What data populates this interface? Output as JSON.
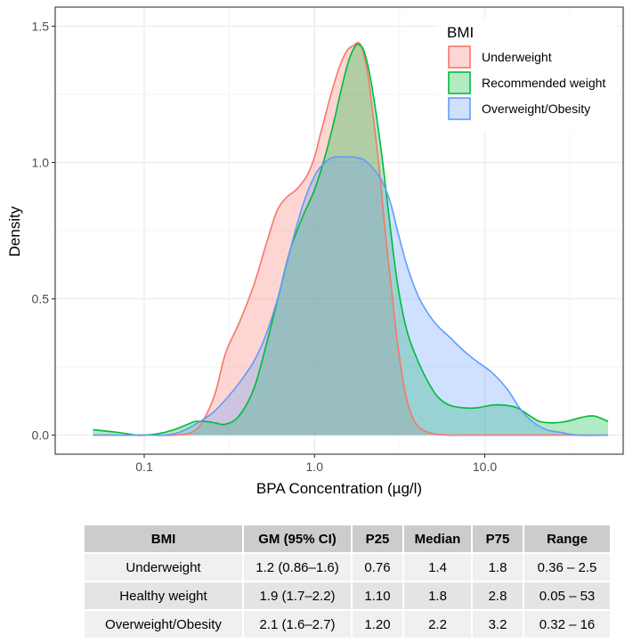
{
  "chart_data": {
    "type": "area",
    "subtype": "density",
    "title": "",
    "xlabel": "BPA Concentration (µg/l)",
    "ylabel": "Density",
    "xscale": "log10",
    "xlim": [
      0.03,
      65
    ],
    "ylim": [
      -0.07,
      1.57
    ],
    "x_ticks": [
      0.1,
      1.0,
      10.0
    ],
    "x_tick_labels": [
      "0.1",
      "1.0",
      "10.0"
    ],
    "x_minor_ticks": [
      0.316,
      3.16,
      31.6
    ],
    "y_ticks": [
      0.0,
      0.5,
      1.0,
      1.5
    ],
    "y_tick_labels": [
      "0.0",
      "0.5",
      "1.0",
      "1.5"
    ],
    "y_minor_ticks": [
      0.25,
      0.75,
      1.25
    ],
    "grid": true,
    "legend": {
      "title": "BMI",
      "placement": "top-right-inside"
    },
    "series": [
      {
        "name": "Underweight",
        "line_color": "#f8766d",
        "fill_color": "#f8766d",
        "x": [
          0.05,
          0.1,
          0.15,
          0.19,
          0.22,
          0.26,
          0.3,
          0.36,
          0.44,
          0.52,
          0.6,
          0.68,
          0.78,
          0.9,
          1.0,
          1.1,
          1.25,
          1.4,
          1.55,
          1.7,
          1.8,
          1.9,
          2.05,
          2.2,
          2.4,
          2.6,
          2.85,
          3.1,
          3.4,
          3.8,
          4.3,
          5.0,
          6.0,
          8.0,
          12.0,
          20.0,
          53.0
        ],
        "y": [
          0.0,
          0.0,
          0.0,
          0.01,
          0.05,
          0.15,
          0.3,
          0.41,
          0.55,
          0.7,
          0.82,
          0.87,
          0.9,
          0.95,
          1.02,
          1.12,
          1.25,
          1.35,
          1.41,
          1.43,
          1.44,
          1.42,
          1.33,
          1.18,
          0.98,
          0.75,
          0.52,
          0.32,
          0.16,
          0.06,
          0.02,
          0.005,
          0.0,
          0.0,
          0.0,
          0.0,
          0.0
        ]
      },
      {
        "name": "Recommended weight",
        "line_color": "#00ba38",
        "fill_color": "#00ba38",
        "x": [
          0.05,
          0.07,
          0.09,
          0.1,
          0.12,
          0.15,
          0.18,
          0.2,
          0.23,
          0.26,
          0.3,
          0.36,
          0.44,
          0.52,
          0.62,
          0.72,
          0.85,
          1.0,
          1.15,
          1.3,
          1.45,
          1.6,
          1.75,
          1.85,
          1.95,
          2.1,
          2.3,
          2.55,
          2.8,
          3.1,
          3.5,
          4.0,
          4.6,
          5.3,
          6.2,
          7.5,
          9.0,
          11.0,
          13.0,
          15.5,
          18.5,
          21.0,
          25.0,
          30.0,
          37.0,
          44.0,
          53.0
        ],
        "y": [
          0.02,
          0.01,
          0.0,
          0.0,
          0.005,
          0.02,
          0.04,
          0.05,
          0.05,
          0.045,
          0.04,
          0.07,
          0.17,
          0.33,
          0.52,
          0.68,
          0.8,
          0.9,
          1.02,
          1.15,
          1.28,
          1.38,
          1.43,
          1.43,
          1.41,
          1.33,
          1.18,
          0.97,
          0.75,
          0.54,
          0.38,
          0.28,
          0.2,
          0.14,
          0.11,
          0.1,
          0.1,
          0.11,
          0.11,
          0.1,
          0.07,
          0.05,
          0.045,
          0.05,
          0.065,
          0.07,
          0.05
        ]
      },
      {
        "name": "Overweight/Obesity",
        "line_color": "#619cff",
        "fill_color": "#619cff",
        "x": [
          0.05,
          0.1,
          0.13,
          0.16,
          0.2,
          0.25,
          0.3,
          0.36,
          0.44,
          0.52,
          0.62,
          0.72,
          0.85,
          1.0,
          1.15,
          1.3,
          1.5,
          1.7,
          1.95,
          2.2,
          2.5,
          2.8,
          3.1,
          3.5,
          4.0,
          4.6,
          5.3,
          6.2,
          7.5,
          9.0,
          11.0,
          13.5,
          16.0,
          19.0,
          23.0,
          28.0,
          35.0,
          53.0
        ],
        "y": [
          0.0,
          0.0,
          0.0,
          0.01,
          0.04,
          0.08,
          0.13,
          0.19,
          0.27,
          0.37,
          0.52,
          0.68,
          0.84,
          0.95,
          1.0,
          1.02,
          1.02,
          1.02,
          1.01,
          0.98,
          0.93,
          0.85,
          0.74,
          0.62,
          0.52,
          0.45,
          0.4,
          0.36,
          0.31,
          0.27,
          0.23,
          0.17,
          0.1,
          0.05,
          0.02,
          0.01,
          0.0,
          0.0
        ]
      }
    ]
  },
  "table": {
    "headers": [
      "BMI",
      "GM (95% CI)",
      "P25",
      "Median",
      "P75",
      "Range"
    ],
    "rows": [
      [
        "Underweight",
        "1.2 (0.86–1.6)",
        "0.76",
        "1.4",
        "1.8",
        "0.36 – 2.5"
      ],
      [
        "Healthy weight",
        "1.9 (1.7–2.2)",
        "1.10",
        "1.8",
        "2.8",
        "0.05 – 53"
      ],
      [
        "Overweight/Obesity",
        "2.1 (1.6–2.7)",
        "1.20",
        "2.2",
        "3.2",
        "0.32 – 16"
      ]
    ]
  }
}
